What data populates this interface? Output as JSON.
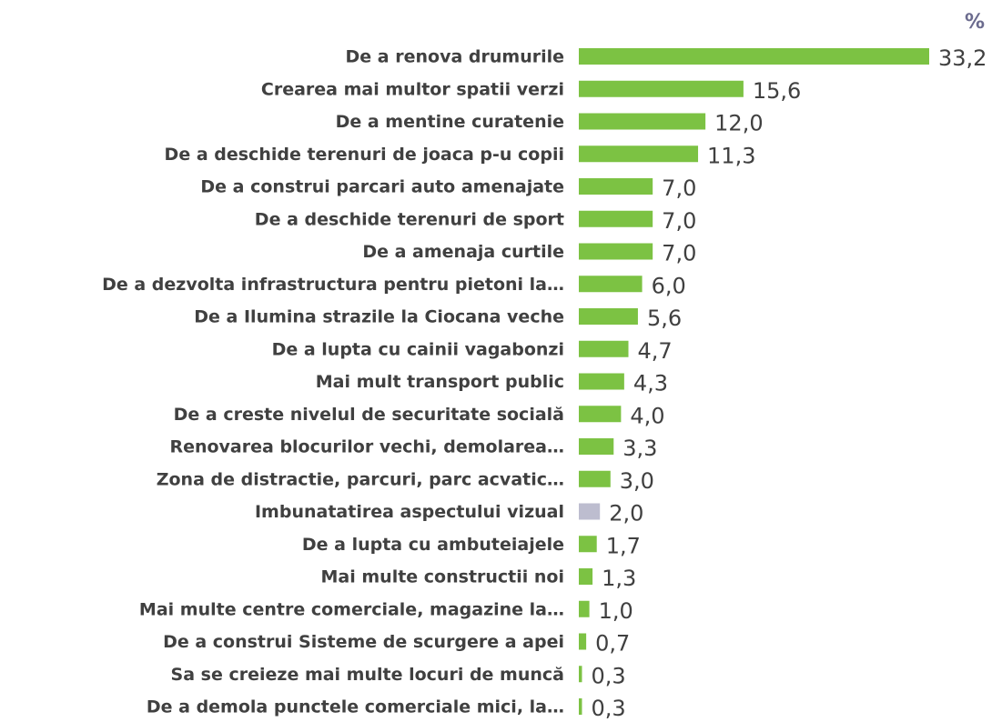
{
  "chart_data": {
    "type": "barh",
    "unit": "%",
    "categories": [
      "De a renova drumurile",
      "Crearea mai multor spatii verzi",
      "De a mentine curatenie",
      "De a deschide terenuri de joaca p-u copii",
      "De a construi parcari auto amenajate",
      "De a deschide terenuri de sport",
      "De a amenaja curtile",
      "De a dezvolta infrastructura pentru pietoni la…",
      "De a Ilumina strazile la Ciocana veche",
      "De a lupta cu cainii vagabonzi",
      "Mai mult transport public",
      "De a creste nivelul de securitate socială",
      "Renovarea blocurilor vechi, demolarea…",
      "Zona de distractie, parcuri, parc acvatic…",
      "Imbunatatirea aspectului vizual",
      "De a lupta cu ambuteiajele",
      "Mai multe constructii noi",
      "Mai multe centre comerciale, magazine la…",
      "De a construi Sisteme de scurgere a apei",
      "Sa se creieze mai multe locuri de muncă",
      "De a demola punctele comerciale mici, la…"
    ],
    "values": [
      33.2,
      15.6,
      12.0,
      11.3,
      7.0,
      7.0,
      7.0,
      6.0,
      5.6,
      4.7,
      4.3,
      4.0,
      3.3,
      3.0,
      2.0,
      1.7,
      1.3,
      1.0,
      0.7,
      0.3,
      0.3
    ],
    "value_labels": [
      "33,2",
      "15,6",
      "12,0",
      "11,3",
      "7,0",
      "7,0",
      "7,0",
      "6,0",
      "5,6",
      "4,7",
      "4,3",
      "4,0",
      "3,3",
      "3,0",
      "2,0",
      "1,7",
      "1,3",
      "1,0",
      "0,7",
      "0,3",
      "0,3"
    ],
    "colors": [
      "#7cc243",
      "#7cc243",
      "#7cc243",
      "#7cc243",
      "#7cc243",
      "#7cc243",
      "#7cc243",
      "#7cc243",
      "#7cc243",
      "#7cc243",
      "#7cc243",
      "#7cc243",
      "#7cc243",
      "#7cc243",
      "#bdbdcf",
      "#7cc243",
      "#7cc243",
      "#7cc243",
      "#7cc243",
      "#7cc243",
      "#7cc243"
    ]
  }
}
